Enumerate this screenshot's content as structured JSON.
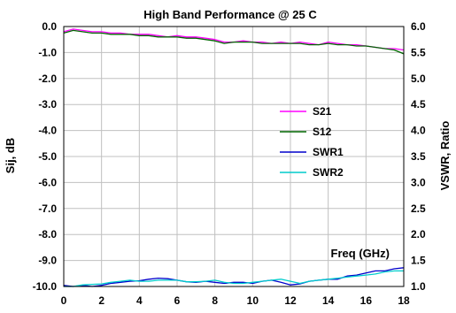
{
  "chart_data": {
    "type": "line",
    "title": "High Band Performance @ 25 C",
    "xlabel": "Freq (GHz)",
    "ylabel_left": "Sij, dB",
    "ylabel_right": "VSWR, Ratio",
    "xlim": [
      0,
      18
    ],
    "ylim_left": [
      -10,
      0
    ],
    "ylim_right": [
      1.0,
      6.0
    ],
    "x_ticks": [
      "0",
      "2",
      "4",
      "6",
      "8",
      "10",
      "12",
      "14",
      "16",
      "18"
    ],
    "y_left_ticks": [
      "0.0",
      "-1.0",
      "-2.0",
      "-3.0",
      "-4.0",
      "-5.0",
      "-6.0",
      "-7.0",
      "-8.0",
      "-9.0",
      "-10.0"
    ],
    "y_right_ticks": [
      "6.0",
      "5.5",
      "5.0",
      "4.5",
      "4.0",
      "3.5",
      "3.0",
      "2.5",
      "2.0",
      "1.5",
      "1.0"
    ],
    "grid": true,
    "legend_position": "right-center",
    "x": [
      0,
      0.5,
      1,
      1.5,
      2,
      2.5,
      3,
      3.5,
      4,
      4.5,
      5,
      5.5,
      6,
      6.5,
      7,
      7.5,
      8,
      8.5,
      9,
      9.5,
      10,
      10.5,
      11,
      11.5,
      12,
      12.5,
      13,
      13.5,
      14,
      14.5,
      15,
      15.5,
      16,
      16.5,
      17,
      17.5,
      18
    ],
    "series": [
      {
        "name": "S21",
        "axis": "left",
        "color": "#ff00ff",
        "values": [
          -0.2,
          -0.1,
          -0.15,
          -0.2,
          -0.2,
          -0.25,
          -0.25,
          -0.3,
          -0.3,
          -0.3,
          -0.35,
          -0.4,
          -0.35,
          -0.4,
          -0.4,
          -0.45,
          -0.5,
          -0.6,
          -0.6,
          -0.55,
          -0.6,
          -0.6,
          -0.65,
          -0.6,
          -0.65,
          -0.6,
          -0.65,
          -0.7,
          -0.6,
          -0.65,
          -0.7,
          -0.7,
          -0.75,
          -0.8,
          -0.85,
          -0.85,
          -0.9
        ]
      },
      {
        "name": "S12",
        "axis": "left",
        "color": "#006600",
        "values": [
          -0.25,
          -0.15,
          -0.2,
          -0.25,
          -0.25,
          -0.3,
          -0.3,
          -0.3,
          -0.35,
          -0.35,
          -0.4,
          -0.4,
          -0.4,
          -0.45,
          -0.45,
          -0.5,
          -0.55,
          -0.65,
          -0.6,
          -0.6,
          -0.6,
          -0.65,
          -0.65,
          -0.65,
          -0.65,
          -0.65,
          -0.7,
          -0.7,
          -0.65,
          -0.7,
          -0.7,
          -0.75,
          -0.75,
          -0.8,
          -0.85,
          -0.9,
          -1.05
        ]
      },
      {
        "name": "SWR1",
        "axis": "right",
        "color": "#0000cc",
        "values": [
          1.02,
          1.0,
          1.02,
          1.0,
          1.02,
          1.06,
          1.08,
          1.1,
          1.11,
          1.14,
          1.16,
          1.15,
          1.12,
          1.09,
          1.08,
          1.1,
          1.08,
          1.06,
          1.08,
          1.08,
          1.06,
          1.1,
          1.12,
          1.08,
          1.03,
          1.05,
          1.1,
          1.12,
          1.14,
          1.14,
          1.2,
          1.22,
          1.26,
          1.3,
          1.3,
          1.34,
          1.36
        ]
      },
      {
        "name": "SWR2",
        "axis": "right",
        "color": "#00cccc",
        "values": [
          1.0,
          1.0,
          1.03,
          1.04,
          1.05,
          1.08,
          1.1,
          1.12,
          1.1,
          1.1,
          1.12,
          1.12,
          1.12,
          1.09,
          1.09,
          1.1,
          1.12,
          1.08,
          1.06,
          1.06,
          1.08,
          1.1,
          1.12,
          1.14,
          1.1,
          1.06,
          1.1,
          1.12,
          1.14,
          1.16,
          1.18,
          1.2,
          1.22,
          1.24,
          1.28,
          1.3,
          1.3
        ]
      }
    ]
  }
}
